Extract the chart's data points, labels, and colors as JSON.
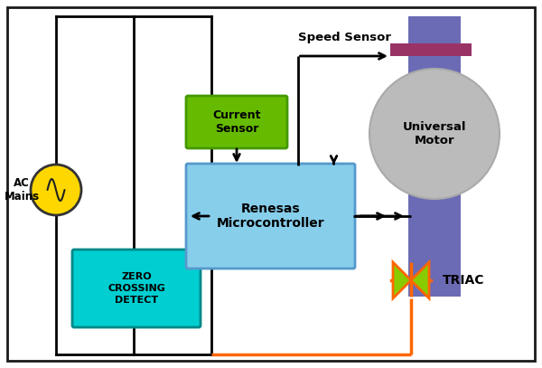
{
  "fig_width": 6.0,
  "fig_height": 4.07,
  "dpi": 100,
  "bg_color": "#ffffff",
  "border_color": "#1a1a1a",
  "ac_mains_color": "#FFD700",
  "ac_mains_label": "AC\nMains",
  "zero_crossing_color": "#00CED1",
  "zero_crossing_label": "ZERO\nCROSSING\nDETECT",
  "current_sensor_color": "#66BB00",
  "current_sensor_label": "Current\nSensor",
  "microcontroller_color": "#87CEEB",
  "microcontroller_label": "Renesas\nMicrocontroller",
  "motor_body_color": "#6B6BB5",
  "motor_circle_color": "#BBBBBB",
  "motor_label": "Universal\nMotor",
  "motor_sensor_color": "#993366",
  "speed_sensor_label": "Speed Sensor",
  "triac_color_outline": "#FF6600",
  "triac_fill_color": "#88CC00",
  "triac_label": "TRIAC",
  "arrow_color": "#000000",
  "orange_wire_color": "#FF6600",
  "line_color": "#000000",
  "lw_bus": 2.0,
  "lw_wire": 2.5
}
